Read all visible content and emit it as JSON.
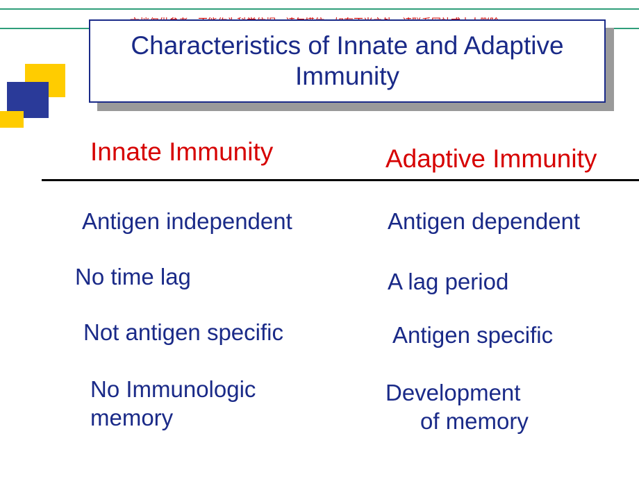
{
  "colors": {
    "accent_rule": "#2f9e7a",
    "deco_yellow": "#ffcc00",
    "deco_blue": "#2a3a99",
    "title_text": "#1a2a88",
    "body_text": "#1a2a88",
    "header_red": "#d60000",
    "disclaimer_red": "#cc0000",
    "shadow": "#9a9a9a"
  },
  "fonts": {
    "body_family": "Arial",
    "title_size_pt": 28,
    "header_size_pt": 28,
    "body_size_pt": 25,
    "disclaimer_size_pt": 10
  },
  "disclaimer": "文档仅供参考，不能作为科学依据，请勿模仿；如有不当之处，请联系网站或本人删除。",
  "title": "Characteristics of Innate and Adaptive Immunity",
  "columns": {
    "left_header": "Innate Immunity",
    "right_header": "Adaptive Immunity"
  },
  "rows": [
    {
      "left": "Antigen independent",
      "right": "Antigen dependent"
    },
    {
      "left": "No time lag",
      "right": "A lag period"
    },
    {
      "left": "Not antigen specific",
      "right": "Antigen specific"
    },
    {
      "left": "No Immunologic memory",
      "right_line1": "Development",
      "right_line2": "of memory"
    }
  ]
}
